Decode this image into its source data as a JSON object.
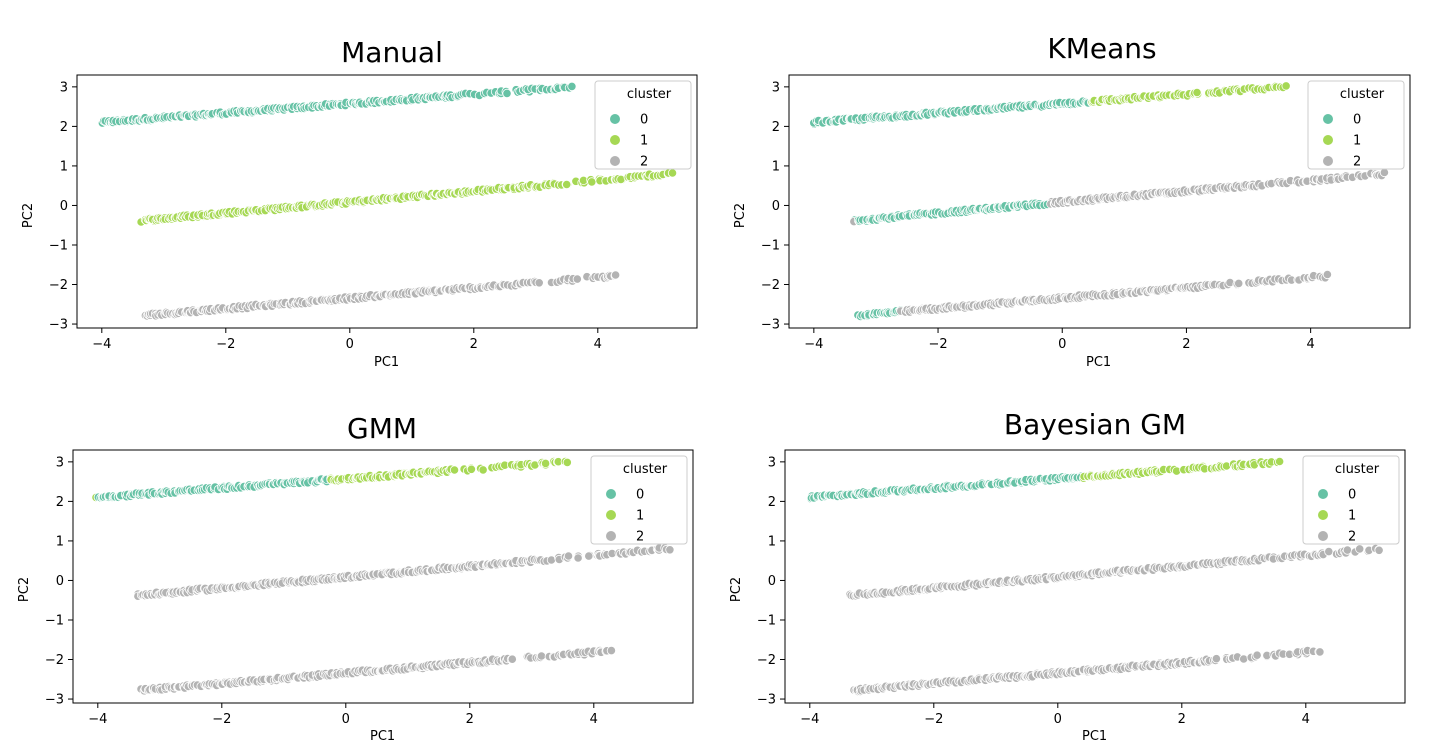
{
  "colors": {
    "0": "#66c2a5",
    "1": "#a6d854",
    "2": "#b3b3b3"
  },
  "chart_data": [
    {
      "type": "scatter",
      "title": "Manual",
      "xlabel": "PC1",
      "ylabel": "PC2",
      "xlim": [
        -4.4,
        5.6
      ],
      "ylim": [
        -3.1,
        3.3
      ],
      "xticks": [
        -4,
        -2,
        0,
        2,
        4
      ],
      "yticks": [
        -3,
        -2,
        -1,
        0,
        1,
        2,
        3
      ],
      "legend": {
        "title": "cluster",
        "labels": [
          "0",
          "1",
          "2"
        ],
        "position": "top-right"
      },
      "bands": [
        {
          "x0": -4.0,
          "x1": 3.6,
          "y0": 2.1,
          "y1": 3.0,
          "clusters": [
            {
              "from": -4.0,
              "to": 3.6,
              "cluster": 0
            }
          ]
        },
        {
          "x0": -3.35,
          "x1": 5.2,
          "y0": -0.38,
          "y1": 0.8,
          "clusters": [
            {
              "from": -3.35,
              "to": 5.2,
              "cluster": 1
            }
          ]
        },
        {
          "x0": -3.3,
          "x1": 4.3,
          "y0": -2.78,
          "y1": -1.78,
          "clusters": [
            {
              "from": -3.3,
              "to": 4.3,
              "cluster": 2
            }
          ]
        }
      ]
    },
    {
      "type": "scatter",
      "title": "KMeans",
      "xlabel": "PC1",
      "ylabel": "PC2",
      "xlim": [
        -4.4,
        5.6
      ],
      "ylim": [
        -3.1,
        3.3
      ],
      "xticks": [
        -4,
        -2,
        0,
        2,
        4
      ],
      "yticks": [
        -3,
        -2,
        -1,
        0,
        1,
        2,
        3
      ],
      "legend": {
        "title": "cluster",
        "labels": [
          "0",
          "1",
          "2"
        ],
        "position": "top-right"
      },
      "bands": [
        {
          "x0": -4.0,
          "x1": 3.6,
          "y0": 2.1,
          "y1": 3.0,
          "clusters": [
            {
              "from": -4.0,
              "to": 0.45,
              "cluster": 0
            },
            {
              "from": 0.45,
              "to": 3.6,
              "cluster": 1
            }
          ]
        },
        {
          "x0": -3.35,
          "x1": 5.2,
          "y0": -0.38,
          "y1": 0.8,
          "clusters": [
            {
              "from": -3.35,
              "to": -0.2,
              "cluster": 0
            },
            {
              "from": -0.2,
              "to": 5.2,
              "cluster": 2
            }
          ]
        },
        {
          "x0": -3.3,
          "x1": 4.3,
          "y0": -2.78,
          "y1": -1.78,
          "clusters": [
            {
              "from": -3.3,
              "to": -2.6,
              "cluster": 0
            },
            {
              "from": -2.6,
              "to": 4.3,
              "cluster": 2
            }
          ]
        }
      ]
    },
    {
      "type": "scatter",
      "title": "GMM",
      "xlabel": "PC1",
      "ylabel": "PC2",
      "xlim": [
        -4.4,
        5.6
      ],
      "ylim": [
        -3.1,
        3.3
      ],
      "xticks": [
        -4,
        -2,
        0,
        2,
        4
      ],
      "yticks": [
        -3,
        -2,
        -1,
        0,
        1,
        2,
        3
      ],
      "legend": {
        "title": "cluster",
        "labels": [
          "0",
          "1",
          "2"
        ],
        "position": "top-right"
      },
      "bands": [
        {
          "x0": -4.0,
          "x1": 3.6,
          "y0": 2.1,
          "y1": 3.0,
          "clusters": [
            {
              "from": -4.0,
              "to": -0.3,
              "cluster": 0
            },
            {
              "from": -0.3,
              "to": 3.6,
              "cluster": 1
            }
          ]
        },
        {
          "x0": -3.35,
          "x1": 5.2,
          "y0": -0.38,
          "y1": 0.8,
          "clusters": [
            {
              "from": -3.35,
              "to": 5.2,
              "cluster": 2
            }
          ]
        },
        {
          "x0": -3.3,
          "x1": 4.3,
          "y0": -2.78,
          "y1": -1.78,
          "clusters": [
            {
              "from": -3.3,
              "to": 4.3,
              "cluster": 2
            }
          ]
        }
      ]
    },
    {
      "type": "scatter",
      "title": "Bayesian GM",
      "xlabel": "PC1",
      "ylabel": "PC2",
      "xlim": [
        -4.4,
        5.6
      ],
      "ylim": [
        -3.1,
        3.3
      ],
      "xticks": [
        -4,
        -2,
        0,
        2,
        4
      ],
      "yticks": [
        -3,
        -2,
        -1,
        0,
        1,
        2,
        3
      ],
      "legend": {
        "title": "cluster",
        "labels": [
          "0",
          "1",
          "2"
        ],
        "position": "top-right"
      },
      "bands": [
        {
          "x0": -4.0,
          "x1": 3.6,
          "y0": 2.1,
          "y1": 3.0,
          "clusters": [
            {
              "from": -4.0,
              "to": 0.4,
              "cluster": 0
            },
            {
              "from": 0.4,
              "to": 3.6,
              "cluster": 1
            }
          ]
        },
        {
          "x0": -3.35,
          "x1": 5.2,
          "y0": -0.38,
          "y1": 0.8,
          "clusters": [
            {
              "from": -3.35,
              "to": 5.2,
              "cluster": 2
            }
          ]
        },
        {
          "x0": -3.3,
          "x1": 4.3,
          "y0": -2.78,
          "y1": -1.78,
          "clusters": [
            {
              "from": -3.3,
              "to": 4.3,
              "cluster": 2
            }
          ]
        }
      ]
    }
  ]
}
